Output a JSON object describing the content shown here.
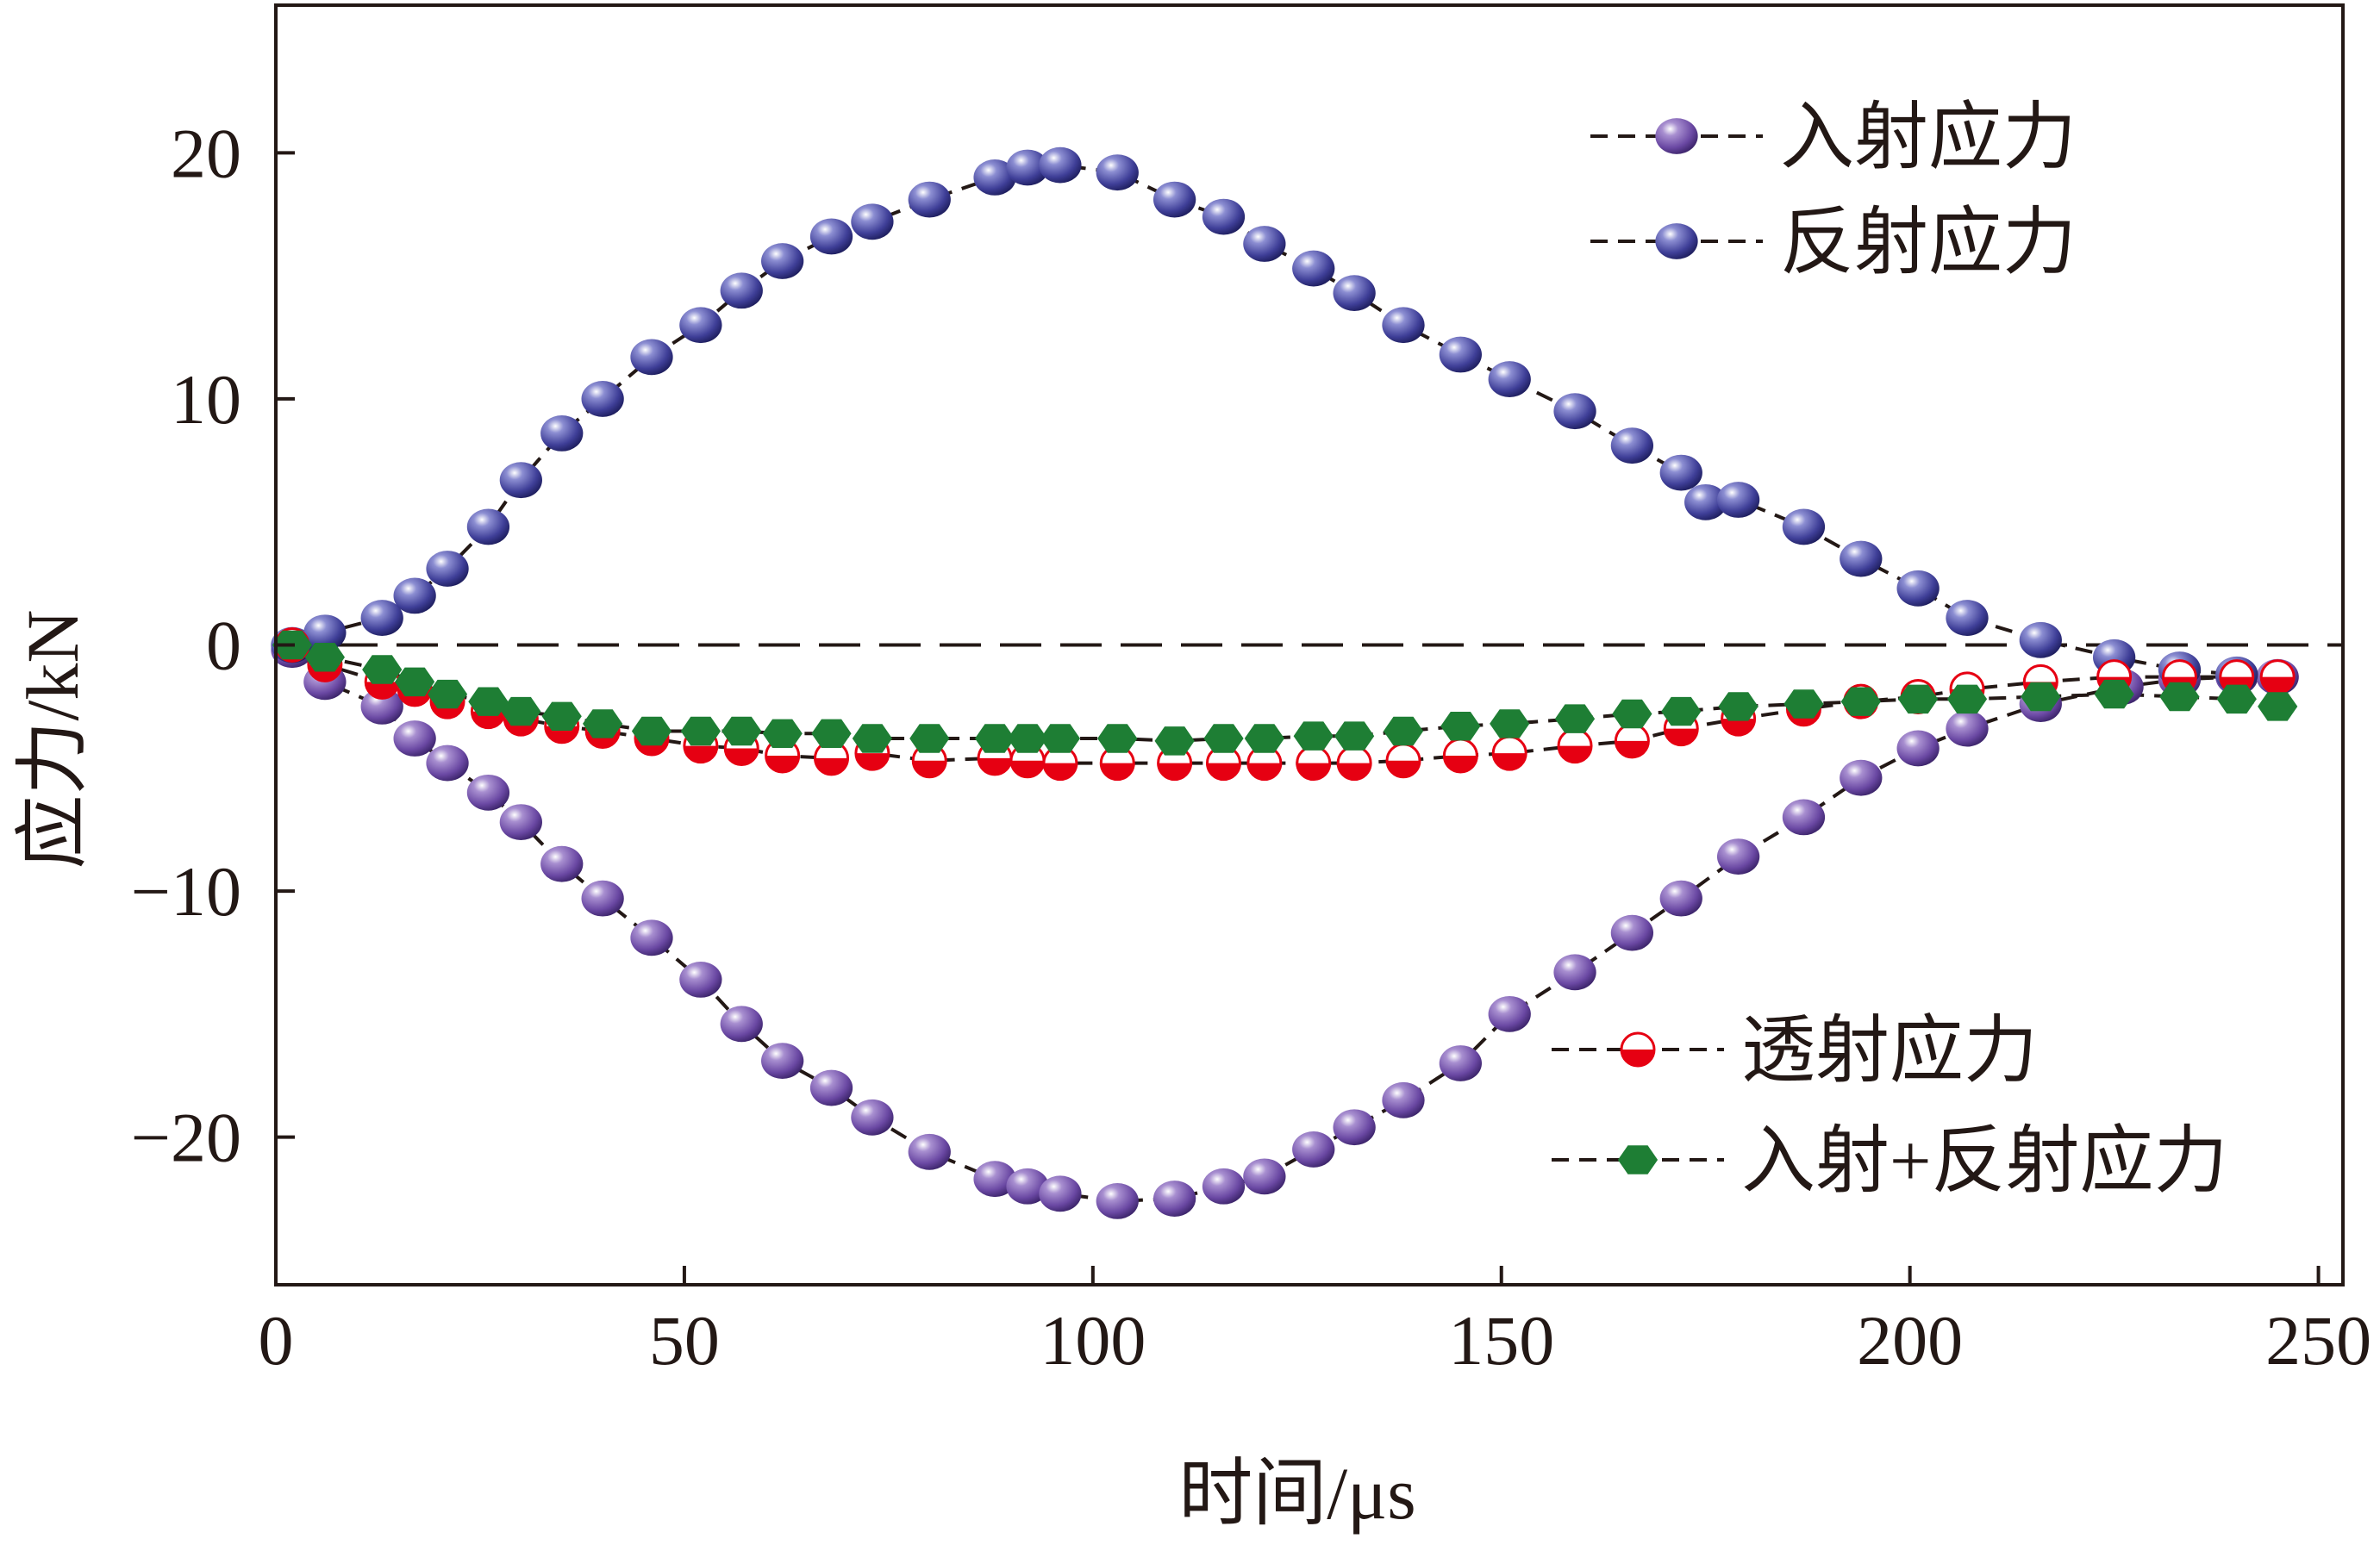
{
  "chart_data": {
    "type": "scatter",
    "xlabel": "时间/μs",
    "ylabel": "应力/kN",
    "xlim": [
      0,
      253
    ],
    "ylim": [
      -26,
      26
    ],
    "xticks": [
      0,
      50,
      100,
      150,
      200,
      250
    ],
    "yticks": [
      -20,
      -10,
      0,
      10,
      20
    ],
    "xtick_labels": [
      "0",
      "50",
      "100",
      "150",
      "200",
      "250"
    ],
    "ytick_labels": [
      "−20",
      "−10",
      "0",
      "10",
      "20"
    ],
    "zero_line": true,
    "grid": false,
    "legends": [
      {
        "placement": "top-right",
        "entries": [
          "入射应力",
          "反射应力"
        ]
      },
      {
        "placement": "bottom-right",
        "entries": [
          "透射应力",
          "入射+反射应力"
        ]
      }
    ],
    "colors": {
      "incident": "#6a48a3",
      "reflected": "#3f3f98",
      "transmitted": "#e60012",
      "incident_plus_reflected": "#1e7e34",
      "line": "#231815"
    },
    "series": [
      {
        "name": "入射应力",
        "marker": "sphere",
        "x": [
          2,
          6,
          13,
          17,
          21,
          26,
          30,
          35,
          40,
          46,
          52,
          57,
          62,
          68,
          73,
          80,
          88,
          92,
          96,
          103,
          110,
          116,
          121,
          127,
          132,
          138,
          145,
          151,
          159,
          166,
          172,
          179,
          187,
          194,
          201,
          207,
          216,
          226,
          233,
          240,
          245
        ],
        "y": [
          -0.2,
          -1.5,
          -2.5,
          -3.8,
          -4.8,
          -6.0,
          -7.2,
          -8.9,
          -10.3,
          -11.9,
          -13.6,
          -15.4,
          -16.9,
          -18.0,
          -19.2,
          -20.6,
          -21.7,
          -22.0,
          -22.3,
          -22.6,
          -22.5,
          -22.0,
          -21.6,
          -20.5,
          -19.6,
          -18.5,
          -17.0,
          -15.0,
          -13.3,
          -11.7,
          -10.3,
          -8.6,
          -7.0,
          -5.4,
          -4.2,
          -3.4,
          -2.4,
          -1.7,
          -1.4,
          -1.3,
          -1.3
        ]
      },
      {
        "name": "反射应力",
        "marker": "sphere",
        "x": [
          2,
          6,
          13,
          17,
          21,
          26,
          30,
          35,
          40,
          46,
          52,
          57,
          62,
          68,
          73,
          80,
          88,
          92,
          96,
          103,
          110,
          116,
          121,
          127,
          132,
          138,
          145,
          151,
          159,
          166,
          172,
          175,
          179,
          187,
          194,
          201,
          207,
          216,
          225,
          233,
          240
        ],
        "y": [
          0.0,
          0.5,
          1.1,
          2.0,
          3.1,
          4.8,
          6.7,
          8.6,
          10.0,
          11.7,
          13.0,
          14.4,
          15.6,
          16.6,
          17.2,
          18.1,
          19.0,
          19.4,
          19.5,
          19.2,
          18.1,
          17.4,
          16.3,
          15.3,
          14.3,
          13.0,
          11.8,
          10.8,
          9.5,
          8.1,
          7.0,
          5.8,
          5.9,
          4.8,
          3.5,
          2.3,
          1.1,
          0.2,
          -0.5,
          -1.0,
          -1.2
        ]
      },
      {
        "name": "透射应力",
        "marker": "half-circle",
        "x": [
          2,
          6,
          13,
          17,
          21,
          26,
          30,
          35,
          40,
          46,
          52,
          57,
          62,
          68,
          73,
          80,
          88,
          92,
          96,
          103,
          110,
          116,
          121,
          127,
          132,
          138,
          145,
          151,
          159,
          166,
          172,
          179,
          187,
          194,
          201,
          207,
          216,
          225,
          233,
          240,
          245
        ],
        "y": [
          0.0,
          -0.8,
          -1.5,
          -1.8,
          -2.3,
          -2.7,
          -3.0,
          -3.3,
          -3.5,
          -3.8,
          -4.1,
          -4.2,
          -4.5,
          -4.6,
          -4.4,
          -4.7,
          -4.6,
          -4.7,
          -4.8,
          -4.8,
          -4.8,
          -4.8,
          -4.8,
          -4.8,
          -4.8,
          -4.7,
          -4.5,
          -4.4,
          -4.1,
          -3.9,
          -3.4,
          -3.0,
          -2.6,
          -2.3,
          -2.1,
          -1.8,
          -1.5,
          -1.3,
          -1.3,
          -1.3,
          -1.3
        ]
      },
      {
        "name": "入射+反射应力",
        "marker": "hexagon",
        "x": [
          2,
          6,
          13,
          17,
          21,
          26,
          30,
          35,
          40,
          46,
          52,
          57,
          62,
          68,
          73,
          80,
          88,
          92,
          96,
          103,
          110,
          116,
          121,
          127,
          132,
          138,
          145,
          151,
          159,
          166,
          172,
          179,
          187,
          194,
          201,
          207,
          216,
          225,
          233,
          240,
          245
        ],
        "y": [
          0.0,
          -0.5,
          -1.0,
          -1.5,
          -2.0,
          -2.3,
          -2.7,
          -2.9,
          -3.2,
          -3.5,
          -3.5,
          -3.5,
          -3.6,
          -3.6,
          -3.8,
          -3.8,
          -3.8,
          -3.8,
          -3.8,
          -3.8,
          -3.9,
          -3.8,
          -3.8,
          -3.7,
          -3.7,
          -3.5,
          -3.3,
          -3.2,
          -3.0,
          -2.8,
          -2.7,
          -2.5,
          -2.4,
          -2.3,
          -2.2,
          -2.2,
          -2.1,
          -2.0,
          -2.1,
          -2.2,
          -2.5
        ]
      }
    ]
  }
}
